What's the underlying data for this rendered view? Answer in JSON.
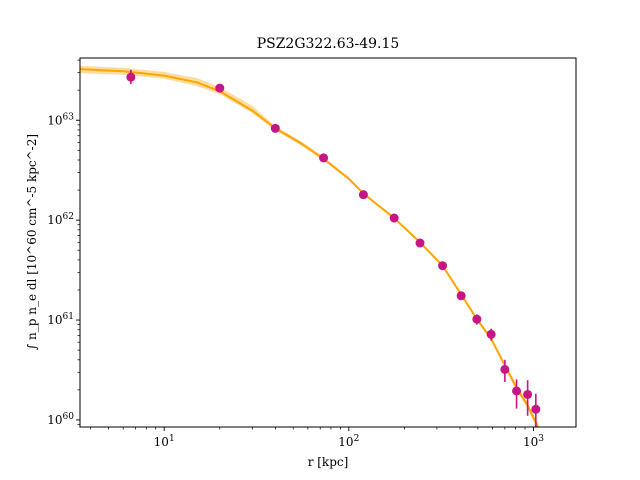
{
  "chart_data": {
    "type": "scatter",
    "title": "PSZ2G322.63-49.15",
    "xlabel": "r [kpc]",
    "ylabel": "∫ n_p n_e dl [10^60 cm^-5 kpc^-2]",
    "xscale": "log",
    "yscale": "log",
    "xlim": [
      3.5,
      1700
    ],
    "ylim": [
      8.5e+59,
      4.2e+63
    ],
    "grid": false,
    "x_ticks": [
      {
        "value": 10,
        "base": "10",
        "exp": "1"
      },
      {
        "value": 100,
        "base": "10",
        "exp": "2"
      },
      {
        "value": 1000,
        "base": "10",
        "exp": "3"
      }
    ],
    "y_ticks": [
      {
        "value": 1e+60,
        "base": "10",
        "exp": "60"
      },
      {
        "value": 1e+61,
        "base": "10",
        "exp": "61"
      },
      {
        "value": 1e+62,
        "base": "10",
        "exp": "62"
      },
      {
        "value": 1e+63,
        "base": "10",
        "exp": "63"
      }
    ],
    "colors": {
      "model": "#ffa500",
      "band": "#ffd48a",
      "points": "#c71585"
    },
    "series": [
      {
        "kind": "data",
        "x": [
          6.6,
          20,
          40,
          73,
          120,
          176,
          243,
          322,
          406,
          494,
          590,
          700,
          810,
          930,
          1030
        ],
        "y": [
          2.7e+63,
          2.1e+63,
          8.3e+62,
          4.2e+62,
          1.8e+62,
          1.05e+62,
          5.9e+61,
          3.5e+61,
          1.75e+61,
          1.02e+61,
          7.2e+60,
          3.2e+60,
          1.95e+60,
          1.8e+60,
          1.28e+60
        ],
        "yerr_low": [
          4e+62,
          1.5e+62,
          5e+61,
          2e+61,
          1e+61,
          5e+60,
          3e+60,
          2e+60,
          1.2e+60,
          1.2e+60,
          1e+60,
          8e+59,
          6.5e+59,
          7e+59,
          4.5e+59
        ],
        "yerr_high": [
          5e+62,
          2e+62,
          5e+61,
          2e+61,
          1e+61,
          5e+60,
          3e+60,
          2e+60,
          1.2e+60,
          1.2e+60,
          1e+60,
          8e+59,
          6e+59,
          7e+59,
          5.5e+59
        ]
      },
      {
        "kind": "model",
        "x": [
          3.5,
          6,
          10,
          15,
          20,
          30,
          40,
          55,
          73,
          100,
          120,
          176,
          243,
          322,
          406,
          494,
          590,
          700,
          810,
          930,
          1000,
          1060
        ],
        "y": [
          3.25e+63,
          3.1e+63,
          2.8e+63,
          2.4e+63,
          1.95e+63,
          1.25e+63,
          8.3e+62,
          5.9e+62,
          4.1e+62,
          2.6e+62,
          1.85e+62,
          1.05e+62,
          6e+61,
          3.5e+61,
          1.8e+61,
          1.02e+61,
          6.5e+60,
          3.5e+60,
          2.1e+60,
          1.4e+60,
          1.05e+60,
          8.5e+59
        ],
        "y_low": [
          2.95e+63,
          2.85e+63,
          2.6e+63,
          2.2e+63,
          1.82e+63,
          1.18e+63,
          7.9e+62,
          5.6e+62,
          3.95e+62,
          2.5e+62,
          1.8e+62,
          1.02e+62,
          5.85e+61,
          3.4e+61,
          1.75e+61,
          9.8e+60,
          6.2e+60,
          3.3e+60,
          1.95e+60,
          1.3e+60,
          9.7e+59,
          7.8e+59
        ],
        "y_high": [
          3.5e+63,
          3.35e+63,
          3.05e+63,
          2.65e+63,
          2.15e+63,
          1.4e+63,
          8.7e+62,
          6.2e+62,
          4.3e+62,
          2.7e+62,
          1.9e+62,
          1.08e+62,
          6.15e+61,
          3.6e+61,
          1.85e+61,
          1.06e+61,
          6.8e+60,
          3.7e+60,
          2.25e+60,
          1.5e+60,
          1.12e+60,
          9.2e+59
        ]
      }
    ]
  }
}
